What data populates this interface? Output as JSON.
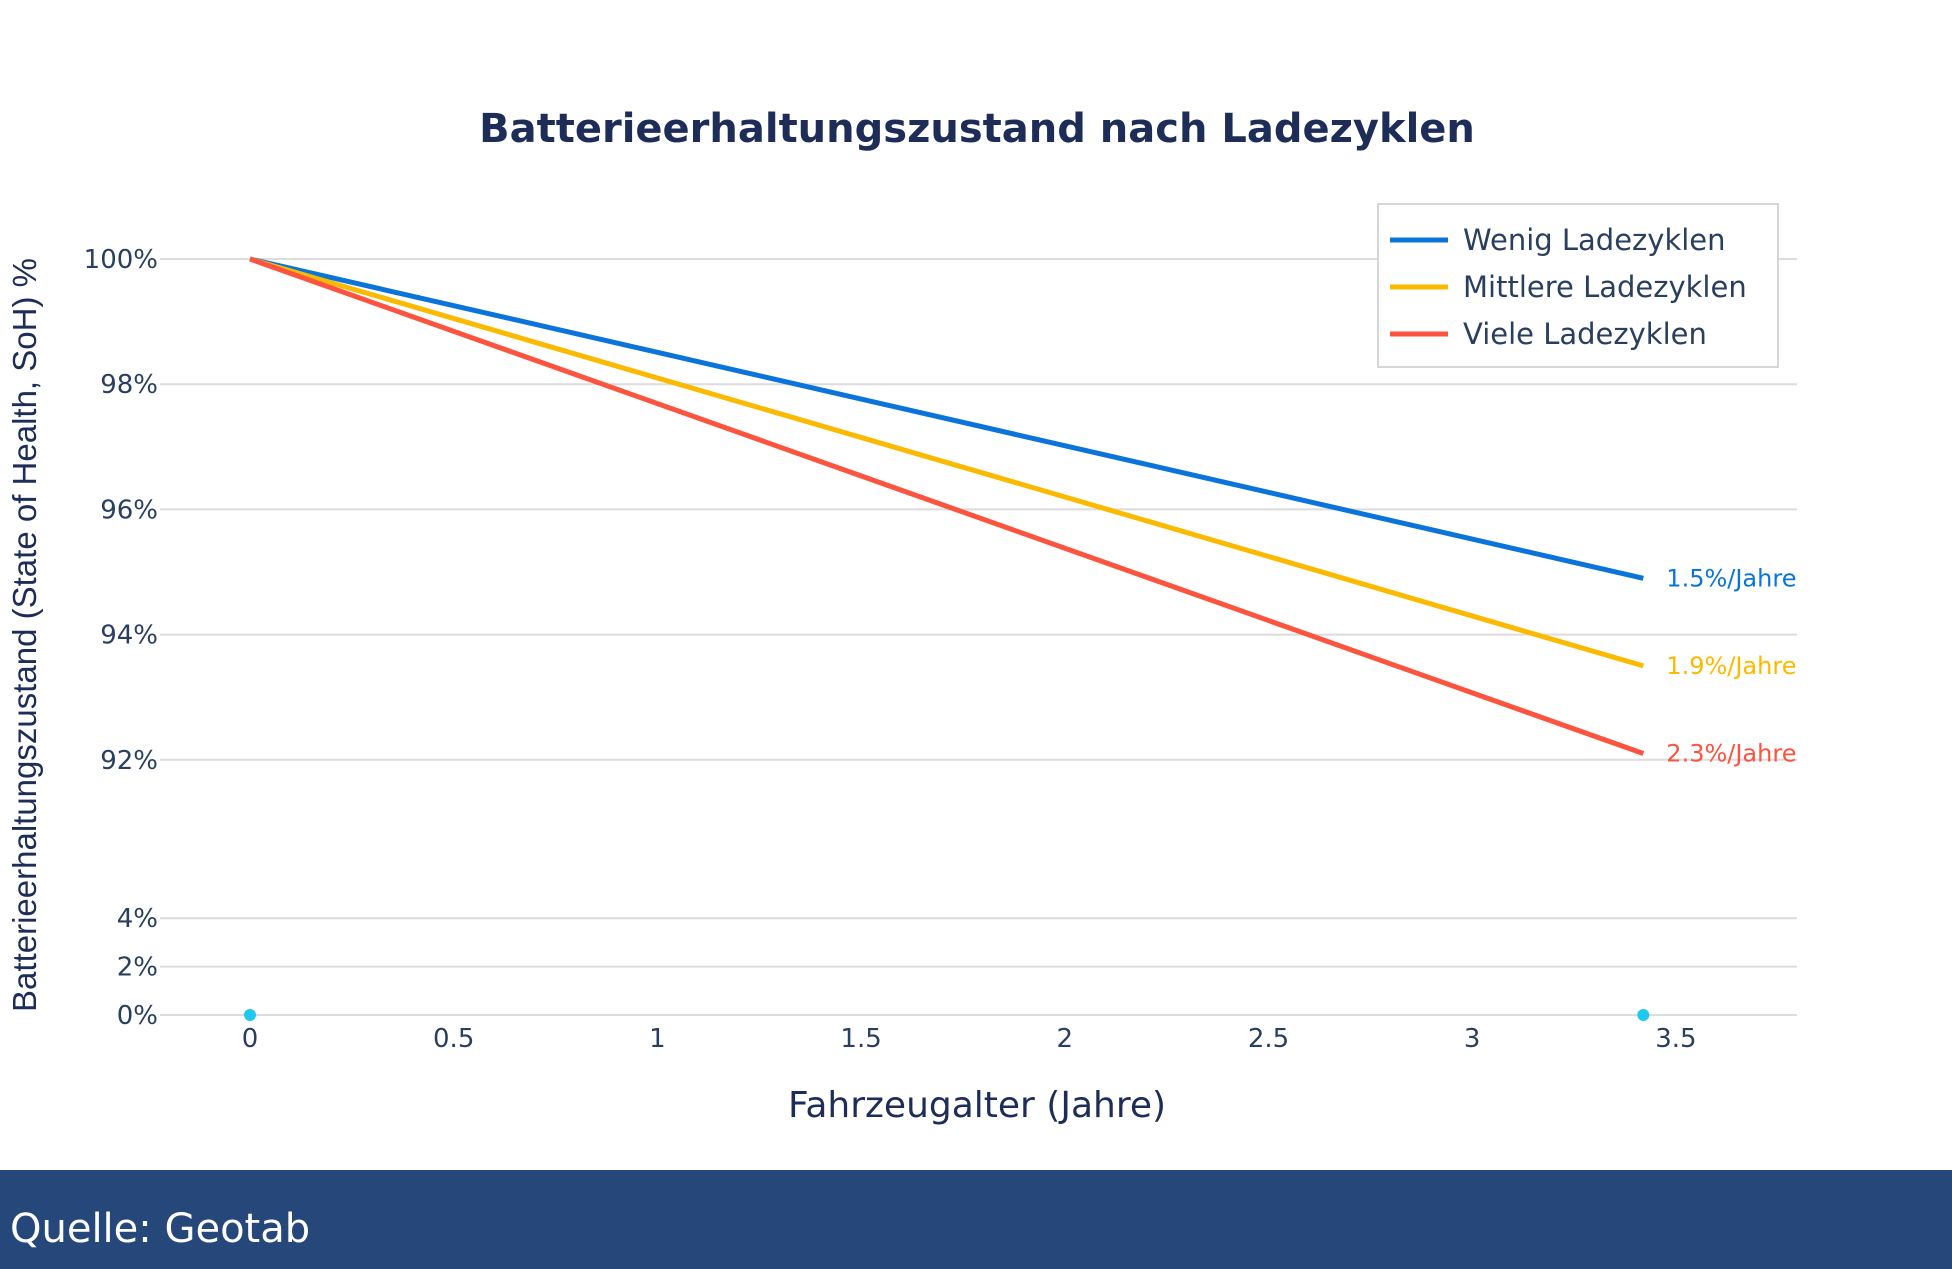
{
  "chart_data": {
    "type": "line",
    "title": "Batterieerhaltungszustand nach Ladezyklen",
    "xlabel": "Fahrzeugalter (Jahre)",
    "ylabel": "Batterieerhaltungszustand (State of Health, SoH) %",
    "x_ticks": [
      "0",
      "0.5",
      "1",
      "1.5",
      "2",
      "2.5",
      "3",
      "3.5"
    ],
    "x_tick_values": [
      0,
      0.5,
      1,
      1.5,
      2,
      2.5,
      3,
      3.5
    ],
    "y_ticks": [
      "100%",
      "98%",
      "96%",
      "94%",
      "92%",
      "4%",
      "2%",
      "0%"
    ],
    "y_tick_values": [
      100,
      98,
      96,
      94,
      92,
      4,
      2,
      0
    ],
    "y_axis_break": [
      4,
      92
    ],
    "xlim": [
      0,
      3.5
    ],
    "grid": true,
    "legend_position": "top-right",
    "series": [
      {
        "name": "Wenig Ladezyklen",
        "color": "#0a74da",
        "x": [
          0,
          3.42
        ],
        "y": [
          100,
          94.9
        ],
        "annotation": "1.5%/Jahre"
      },
      {
        "name": "Mittlere Ladezyklen",
        "color": "#fbb900",
        "x": [
          0,
          3.42
        ],
        "y": [
          100,
          93.5
        ],
        "annotation": "1.9%/Jahre"
      },
      {
        "name": "Viele Ladezyklen",
        "color": "#fd5440",
        "x": [
          0,
          3.42
        ],
        "y": [
          100,
          92.1
        ],
        "annotation": "2.3%/Jahre"
      }
    ],
    "markers": {
      "color": "#1fc8ee",
      "x": [
        0,
        3.42
      ],
      "y": [
        0,
        0
      ]
    }
  },
  "footer": {
    "source": "Quelle: Geotab"
  }
}
